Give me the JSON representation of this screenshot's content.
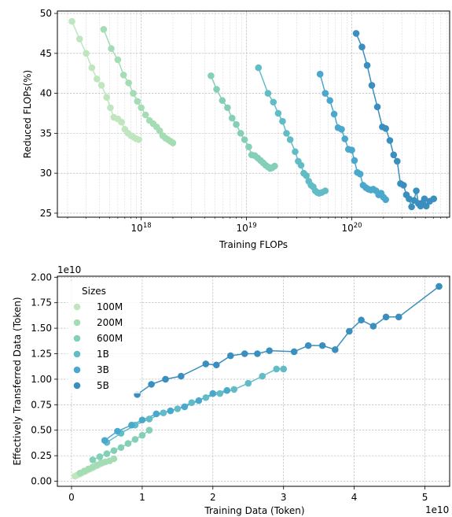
{
  "colors": {
    "100M": "#bfe6bf",
    "200M": "#a4dcb4",
    "600M": "#84cfb8",
    "1B": "#62bcc6",
    "3B": "#4aa8cc",
    "5B": "#3a8fbe"
  },
  "chart_data": [
    {
      "type": "line",
      "xscale": "log",
      "xlabel": "Training FLOPs",
      "ylabel": "Reduced FLOPs(%)",
      "xlim": [
        1.6e+17,
        8.5e+20
      ],
      "ylim": [
        24.5,
        50.3
      ],
      "xticks": [
        {
          "value": 1e+18,
          "base": "10",
          "exp": "18"
        },
        {
          "value": 1e+19,
          "base": "10",
          "exp": "19"
        },
        {
          "value": 1e+20,
          "base": "10",
          "exp": "20"
        }
      ],
      "yticks": [
        25,
        30,
        35,
        40,
        45,
        50
      ],
      "grid": true,
      "series": [
        {
          "size": "100M",
          "x": [
            2.2e+17,
            2.6e+17,
            3e+17,
            3.4e+17,
            3.8e+17,
            4.2e+17,
            4.7e+17,
            5.1e+17,
            5.5e+17,
            6e+17,
            6.5e+17,
            7e+17,
            7.5e+17,
            8e+17,
            8.5e+17,
            9e+17,
            9.5e+17
          ],
          "y": [
            49.0,
            46.8,
            45.0,
            43.2,
            41.8,
            41.0,
            39.5,
            38.2,
            37.0,
            36.8,
            36.4,
            35.5,
            35.0,
            34.7,
            34.5,
            34.3,
            34.2
          ]
        },
        {
          "size": "200M",
          "x": [
            4.4e+17,
            5.2e+17,
            6e+17,
            6.8e+17,
            7.6e+17,
            8.4e+17,
            9.2e+17,
            1e+18,
            1.1e+18,
            1.2e+18,
            1.3e+18,
            1.4e+18,
            1.5e+18,
            1.6e+18,
            1.7e+18,
            1.8e+18,
            1.9e+18,
            2e+18
          ],
          "y": [
            48.0,
            45.6,
            44.2,
            42.3,
            41.3,
            40.0,
            39.0,
            38.2,
            37.3,
            36.6,
            36.2,
            35.8,
            35.3,
            34.7,
            34.4,
            34.2,
            34.0,
            33.8
          ]
        },
        {
          "size": "600M",
          "x": [
            4.6e+18,
            5.2e+18,
            5.9e+18,
            6.6e+18,
            7.3e+18,
            8e+18,
            8.8e+18,
            9.6e+18,
            1.05e+19,
            1.12e+19,
            1.2e+19,
            1.28e+19,
            1.36e+19,
            1.44e+19,
            1.52e+19,
            1.6e+19,
            1.68e+19,
            1.76e+19,
            1.85e+19
          ],
          "y": [
            42.2,
            40.5,
            39.1,
            38.2,
            36.9,
            36.1,
            35.0,
            34.2,
            33.3,
            32.3,
            32.2,
            31.9,
            31.6,
            31.3,
            31.0,
            30.8,
            30.6,
            30.7,
            30.9
          ]
        },
        {
          "size": "1B",
          "x": [
            1.3e+19,
            1.6e+19,
            1.8e+19,
            2e+19,
            2.2e+19,
            2.4e+19,
            2.6e+19,
            2.9e+19,
            3.1e+19,
            3.3e+19,
            3.5e+19,
            3.7e+19,
            3.9e+19,
            4.1e+19,
            4.3e+19,
            4.5e+19,
            4.7e+19,
            4.9e+19,
            5.2e+19,
            5.6e+19
          ],
          "y": [
            43.2,
            40.0,
            38.9,
            37.5,
            36.5,
            35.0,
            34.2,
            32.7,
            31.5,
            31.0,
            30.0,
            29.7,
            29.0,
            28.5,
            28.3,
            27.8,
            27.6,
            27.5,
            27.6,
            27.8
          ]
        },
        {
          "size": "3B",
          "x": [
            5e+19,
            5.6e+19,
            6.2e+19,
            6.8e+19,
            7.4e+19,
            8e+19,
            8.6e+19,
            9.3e+19,
            1e+20,
            1.06e+20,
            1.13e+20,
            1.2e+20,
            1.28e+20,
            1.36e+20,
            1.44e+20,
            1.52e+20,
            1.6e+20,
            1.7e+20,
            1.8e+20,
            1.9e+20,
            2e+20,
            2.1e+20
          ],
          "y": [
            42.4,
            40.0,
            39.1,
            37.4,
            35.7,
            35.5,
            34.3,
            33.0,
            32.9,
            31.6,
            30.1,
            29.9,
            28.5,
            28.2,
            28.0,
            27.9,
            28.0,
            27.8,
            27.3,
            27.5,
            27.0,
            26.7
          ]
        },
        {
          "size": "5B",
          "x": [
            1.1e+20,
            1.25e+20,
            1.4e+20,
            1.55e+20,
            1.75e+20,
            1.95e+20,
            2.1e+20,
            2.3e+20,
            2.5e+20,
            2.7e+20,
            2.9e+20,
            3.1e+20,
            3.3e+20,
            3.5e+20,
            3.7e+20,
            3.9e+20,
            4.1e+20,
            4.3e+20,
            4.5e+20,
            4.7e+20,
            4.9e+20,
            5.1e+20,
            5.5e+20,
            6e+20
          ],
          "y": [
            47.5,
            45.8,
            43.5,
            41.0,
            38.3,
            35.8,
            35.6,
            34.1,
            32.3,
            31.5,
            28.7,
            28.5,
            27.3,
            26.8,
            25.8,
            26.6,
            27.8,
            26.2,
            25.9,
            26.3,
            26.8,
            25.9,
            26.5,
            26.8
          ]
        }
      ]
    },
    {
      "type": "line",
      "xlabel": "Training Data (Token)",
      "ylabel": "Effectively Transferred Data (Token)",
      "x_offset_text": "1e10",
      "y_offset_text": "1e10",
      "xlim": [
        -0.2,
        5.35
      ],
      "ylim": [
        -0.05,
        2.01
      ],
      "xticks": [
        0,
        1,
        2,
        3,
        4,
        5
      ],
      "yticks": [
        0.0,
        0.25,
        0.5,
        0.75,
        1.0,
        1.25,
        1.5,
        1.75,
        2.0
      ],
      "xtick_labels": [
        "0",
        "1",
        "2",
        "3",
        "4",
        "5"
      ],
      "ytick_labels": [
        "0.00",
        "0.25",
        "0.50",
        "0.75",
        "1.00",
        "1.25",
        "1.50",
        "1.75",
        "2.00"
      ],
      "grid": true,
      "legend": {
        "title": "Sizes",
        "position": "top-left",
        "entries": [
          "100M",
          "200M",
          "600M",
          "1B",
          "3B",
          "5B"
        ]
      },
      "series": [
        {
          "name": "100M",
          "x": [
            0.05,
            0.08,
            0.11,
            0.14,
            0.17,
            0.2,
            0.23,
            0.26,
            0.29,
            0.32,
            0.35,
            0.38,
            0.41,
            0.44
          ],
          "y": [
            0.05,
            0.06,
            0.07,
            0.08,
            0.09,
            0.1,
            0.11,
            0.12,
            0.13,
            0.14,
            0.15,
            0.16,
            0.17,
            0.18
          ]
        },
        {
          "name": "200M",
          "x": [
            0.12,
            0.18,
            0.24,
            0.3,
            0.36,
            0.42,
            0.48,
            0.54,
            0.6
          ],
          "y": [
            0.08,
            0.1,
            0.12,
            0.14,
            0.16,
            0.18,
            0.19,
            0.2,
            0.22
          ]
        },
        {
          "name": "600M",
          "x": [
            0.3,
            0.4,
            0.5,
            0.6,
            0.7,
            0.8,
            0.9,
            1.0,
            1.1
          ],
          "y": [
            0.21,
            0.24,
            0.27,
            0.3,
            0.33,
            0.37,
            0.41,
            0.45,
            0.5
          ]
        },
        {
          "name": "1B",
          "x": [
            0.5,
            0.7,
            0.9,
            1.1,
            1.3,
            1.5,
            1.7,
            1.9,
            2.1,
            2.3,
            2.5,
            2.7,
            2.9,
            3.0
          ],
          "y": [
            0.38,
            0.47,
            0.55,
            0.61,
            0.67,
            0.71,
            0.77,
            0.82,
            0.86,
            0.9,
            0.96,
            1.03,
            1.1,
            1.1
          ]
        },
        {
          "name": "3B",
          "x": [
            0.47,
            0.65,
            0.85,
            1.0,
            1.2,
            1.4,
            1.6,
            1.8,
            2.0,
            2.2
          ],
          "y": [
            0.4,
            0.49,
            0.55,
            0.6,
            0.66,
            0.69,
            0.73,
            0.79,
            0.86,
            0.89
          ]
        },
        {
          "name": "5B",
          "x": [
            0.93,
            1.13,
            1.33,
            1.55,
            1.9,
            2.05,
            2.25,
            2.45,
            2.63,
            2.8,
            3.15,
            3.35,
            3.55,
            3.73,
            3.93,
            4.1,
            4.27,
            4.45,
            4.63,
            5.2
          ],
          "y": [
            0.85,
            0.95,
            1.0,
            1.03,
            1.15,
            1.14,
            1.23,
            1.25,
            1.25,
            1.28,
            1.27,
            1.33,
            1.33,
            1.29,
            1.47,
            1.58,
            1.52,
            1.61,
            1.61,
            1.91
          ]
        }
      ]
    }
  ]
}
